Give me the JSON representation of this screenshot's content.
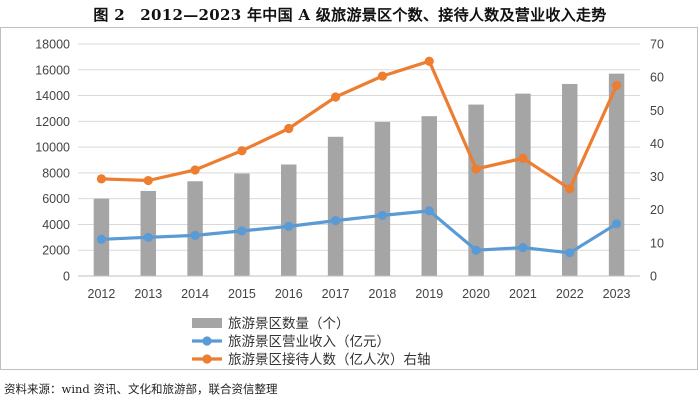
{
  "figure_title": "图 2　2012—2023 年中国 A 级旅游景区个数、接待人数及营业收入走势",
  "source_note": "资料来源：wind 资讯、文化和旅游部，联合资信整理",
  "chart_data": {
    "type": "bar+line",
    "categories": [
      "2012",
      "2013",
      "2014",
      "2015",
      "2016",
      "2017",
      "2018",
      "2019",
      "2020",
      "2021",
      "2022",
      "2023"
    ],
    "left_axis": {
      "min": 0,
      "max": 18000,
      "step": 2000,
      "ticks": [
        "0",
        "2000",
        "4000",
        "6000",
        "8000",
        "10000",
        "12000",
        "14000",
        "16000",
        "18000"
      ]
    },
    "right_axis": {
      "min": 0,
      "max": 70,
      "step": 10,
      "ticks": [
        "0",
        "10",
        "20",
        "30",
        "40",
        "50",
        "60",
        "70"
      ]
    },
    "series": [
      {
        "name": "旅游景区数量（个）",
        "type": "bar",
        "axis": "left",
        "color": "#a5a5a5",
        "values": [
          6000,
          6600,
          7350,
          7950,
          8650,
          10800,
          11950,
          12400,
          13300,
          14150,
          14900,
          15700
        ]
      },
      {
        "name": "旅游景区营业收入（亿元）",
        "type": "line",
        "axis": "left",
        "color": "#5b9bd5",
        "values": [
          2850,
          3000,
          3150,
          3500,
          3850,
          4300,
          4700,
          5050,
          2000,
          2200,
          1800,
          4050
        ]
      },
      {
        "name": "旅游景区接待人数（亿人次）右轴",
        "type": "line",
        "axis": "right",
        "color": "#ed7d31",
        "values": [
          29.3,
          28.8,
          32.0,
          37.8,
          44.5,
          54.0,
          60.3,
          64.8,
          32.3,
          35.5,
          26.3,
          57.5
        ]
      }
    ]
  }
}
